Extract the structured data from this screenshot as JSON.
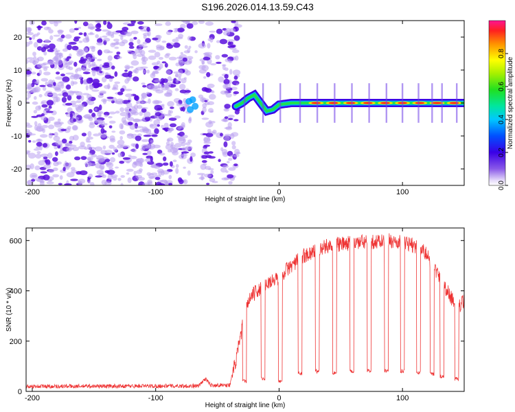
{
  "title": "S196.2026.014.13.59.C43",
  "colors": {
    "snr_line": "#ee3333",
    "purple_dark": "#5a10dd",
    "purple_light": "#b9a0f0"
  },
  "chart_data": [
    {
      "type": "heatmap",
      "name": "spectrogram",
      "xlabel": "Height of straight line (km)",
      "ylabel": "Frequency (Hz)",
      "xlim": [
        -205,
        150
      ],
      "ylim": [
        -25,
        25
      ],
      "xticks": [
        -200,
        -100,
        0,
        100
      ],
      "yticks": [
        -20,
        -10,
        0,
        10,
        20
      ],
      "xtick_labels": [
        "-200",
        "-100",
        "0",
        "100"
      ],
      "ytick_labels": [
        "-20",
        "-10",
        "0",
        "10",
        "20"
      ],
      "colorbar": {
        "label": "Normalized spectral amplitude",
        "range": [
          0,
          1
        ],
        "ticks": [
          0.0,
          0.2,
          0.4,
          0.6,
          0.8
        ],
        "tick_labels": [
          "0.0",
          "0.2",
          "0.4",
          "0.6",
          "0.8"
        ]
      },
      "ridge": {
        "description_points_x": [
          -35,
          -30,
          -25,
          -20,
          -15,
          -10,
          -5,
          0,
          10,
          20,
          50,
          100,
          150
        ],
        "description_points_f": [
          -1,
          0,
          1.5,
          2.5,
          0,
          -2.5,
          -2,
          -0.5,
          0,
          0,
          0,
          0,
          0
        ]
      }
    },
    {
      "type": "line",
      "name": "snr",
      "xlabel": "Height of straight line (km)",
      "ylabel": "SNR (10 * v/v)",
      "xlim": [
        -205,
        150
      ],
      "ylim": [
        0,
        650
      ],
      "xticks": [
        -200,
        -100,
        0,
        100
      ],
      "yticks": [
        0,
        200,
        400,
        600
      ],
      "xtick_labels": [
        "-200",
        "-100",
        "0",
        "100"
      ],
      "ytick_labels": [
        "0",
        "200",
        "400",
        "600"
      ],
      "envelope_x": [
        -205,
        -65,
        -60,
        -55,
        -40,
        -35,
        -30,
        -25,
        -20,
        -15,
        -10,
        -5,
        0,
        5,
        10,
        15,
        20,
        25,
        30,
        35,
        40,
        50,
        60,
        70,
        80,
        90,
        100,
        110,
        115,
        120,
        125,
        130,
        135,
        140,
        145,
        150
      ],
      "envelope_y": [
        20,
        22,
        50,
        25,
        25,
        120,
        250,
        360,
        390,
        410,
        430,
        440,
        450,
        480,
        500,
        520,
        540,
        550,
        560,
        570,
        580,
        585,
        590,
        595,
        595,
        600,
        590,
        580,
        570,
        540,
        500,
        450,
        410,
        370,
        330,
        360
      ],
      "dropouts_x": [
        -28,
        -13,
        1,
        17,
        31,
        45,
        59,
        73,
        87,
        100,
        113,
        124,
        132,
        144
      ],
      "dropout_level": [
        40,
        50,
        40,
        70,
        80,
        75,
        80,
        80,
        80,
        80,
        75,
        70,
        60,
        50
      ]
    }
  ]
}
